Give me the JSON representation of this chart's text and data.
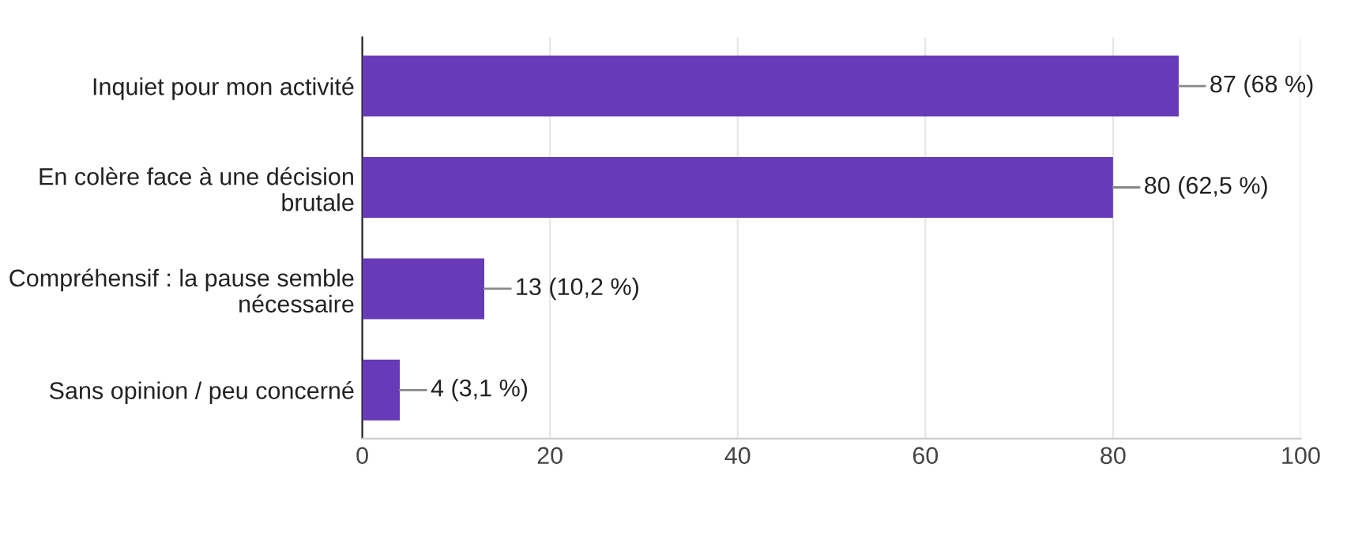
{
  "chart_data": {
    "type": "bar",
    "orientation": "horizontal",
    "categories": [
      "Inquiet pour mon activité",
      "En colère face à une décision\nbrutale",
      "Compréhensif : la pause semble\nnécessaire",
      "Sans opinion / peu concerné"
    ],
    "values": [
      87,
      80,
      13,
      4
    ],
    "value_labels": [
      "87 (68 %)",
      "80 (62,5 %)",
      "13 (10,2 %)",
      "4 (3,1 %)"
    ],
    "color": "#673ab7",
    "xlim": [
      0,
      100
    ],
    "xticks": [
      0,
      20,
      40,
      60,
      80,
      100
    ],
    "grid": "x"
  }
}
